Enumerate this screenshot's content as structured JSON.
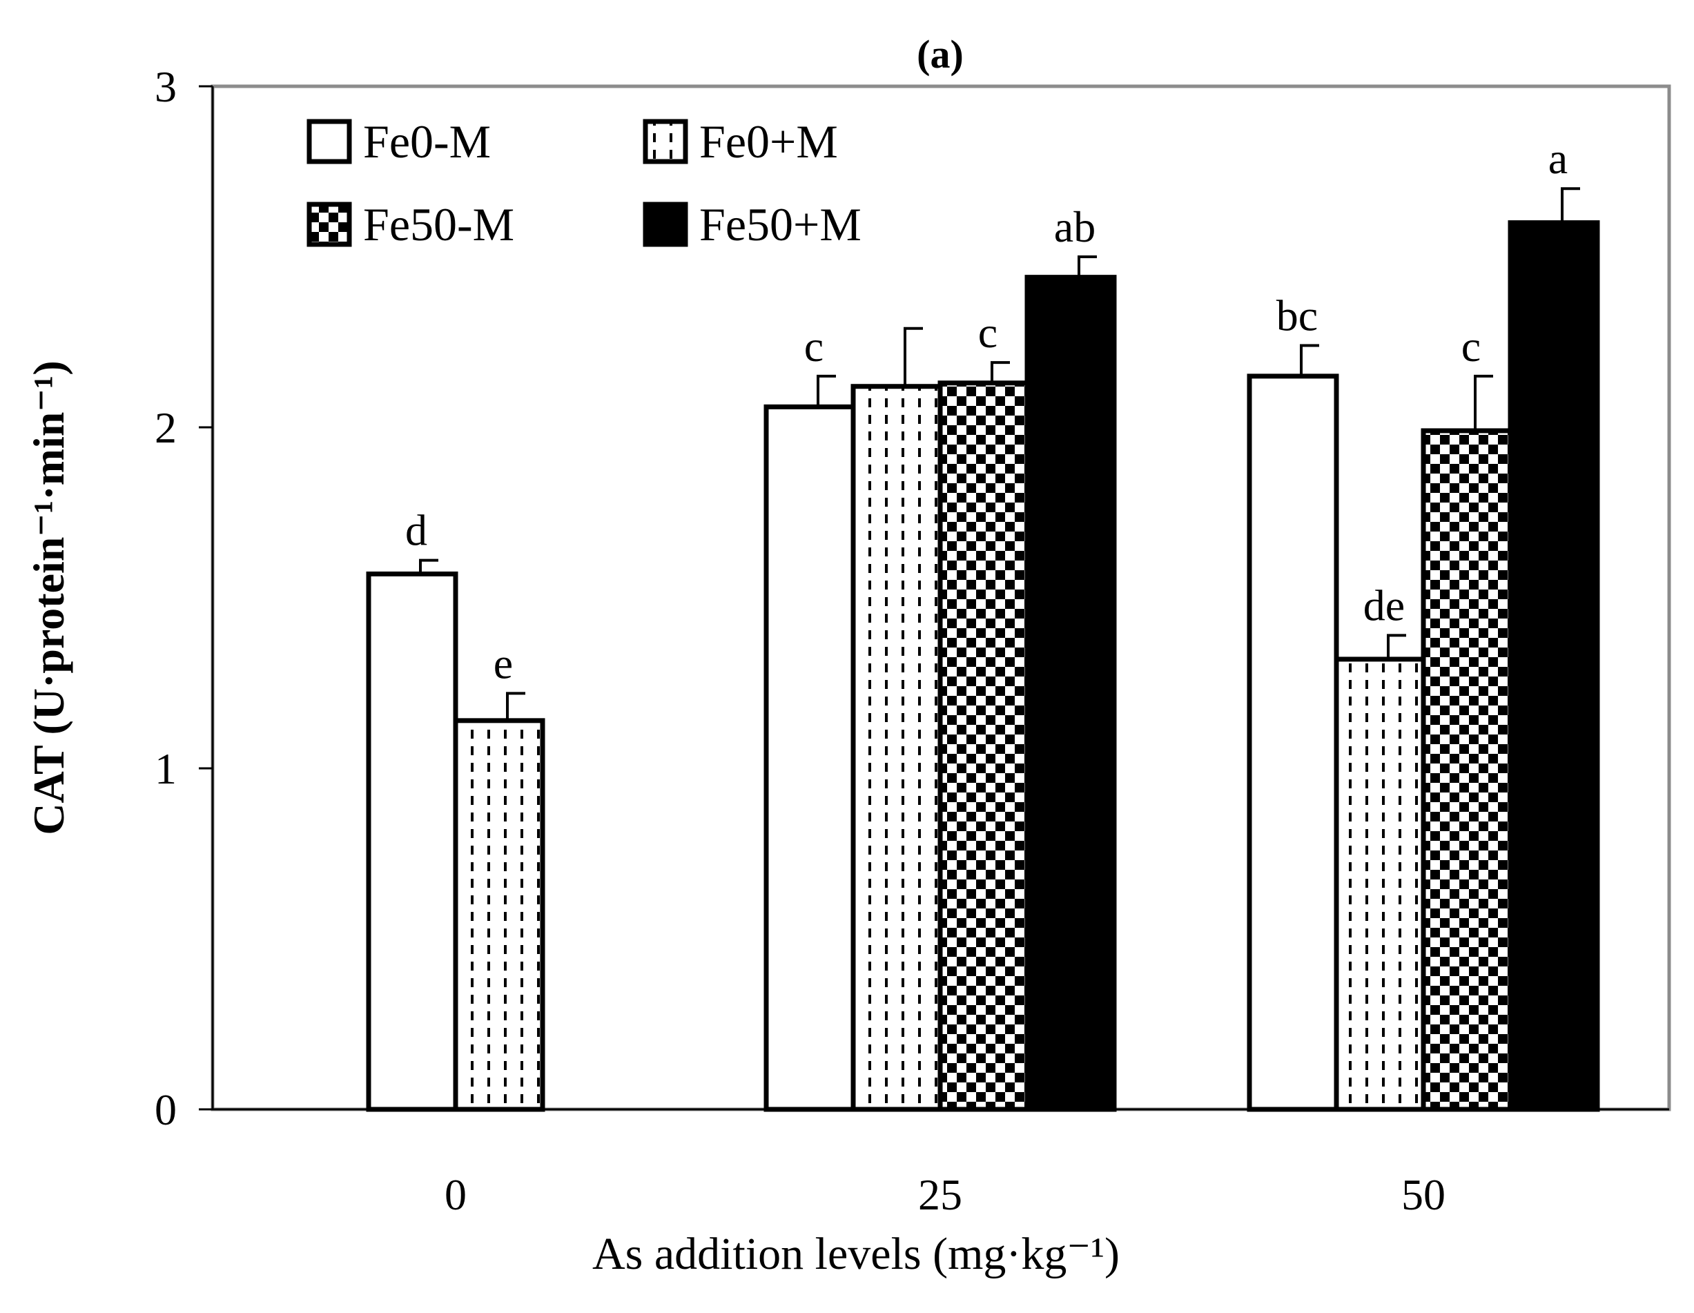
{
  "chart_data": {
    "type": "bar",
    "title": "(a)",
    "xlabel": "As addition levels (mg·kg⁻¹)",
    "ylabel": "CAT (U·protein⁻¹·min⁻¹)",
    "ylim": [
      0,
      3
    ],
    "yticks": [
      "0",
      "1",
      "2",
      "3"
    ],
    "grid": false,
    "legend_position": "top-left",
    "categories": [
      "0",
      "25",
      "50"
    ],
    "series": [
      {
        "name": "Fe0-M",
        "pattern": "white",
        "values": [
          1.57,
          2.06,
          2.15
        ],
        "errors": [
          0.04,
          0.09,
          0.09
        ],
        "labels": [
          "d",
          "c",
          "bc"
        ]
      },
      {
        "name": "Fe0+M",
        "pattern": "dashed",
        "values": [
          1.14,
          2.12,
          1.32
        ],
        "errors": [
          0.08,
          0.17,
          0.07
        ],
        "labels": [
          "e",
          "",
          "de"
        ]
      },
      {
        "name": "Fe50-M",
        "pattern": "checker",
        "values": [
          null,
          2.13,
          1.99
        ],
        "errors": [
          null,
          0.06,
          0.16
        ],
        "labels": [
          "",
          "c",
          "c"
        ]
      },
      {
        "name": "Fe50+M",
        "pattern": "black",
        "values": [
          null,
          2.44,
          2.6
        ],
        "errors": [
          null,
          0.06,
          0.1
        ],
        "labels": [
          "",
          "ab",
          "a"
        ]
      }
    ]
  }
}
